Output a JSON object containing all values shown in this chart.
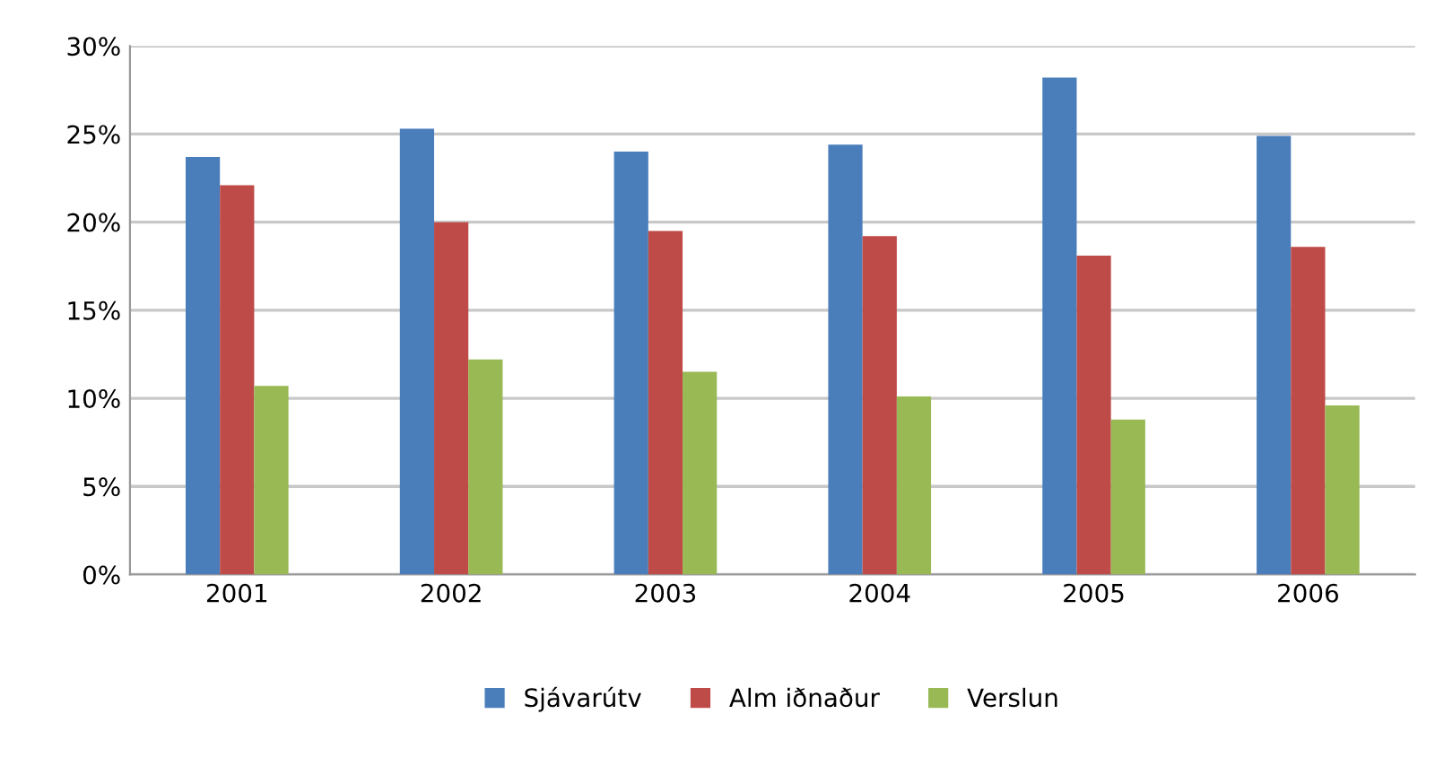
{
  "chart_data": {
    "type": "bar",
    "categories": [
      "2001",
      "2002",
      "2003",
      "2004",
      "2005",
      "2006"
    ],
    "series": [
      {
        "name": "Sjávarútv",
        "color": "#4a7ebb",
        "values": [
          23.7,
          25.3,
          24.0,
          24.4,
          28.2,
          24.9
        ]
      },
      {
        "name": "Alm iðnaður",
        "color": "#be4b48",
        "values": [
          22.1,
          20.0,
          19.5,
          19.2,
          18.1,
          18.6
        ]
      },
      {
        "name": "Verslun",
        "color": "#98b954",
        "values": [
          10.7,
          12.2,
          11.5,
          10.1,
          8.8,
          9.6
        ]
      }
    ],
    "ylim": [
      0,
      30
    ],
    "yticks": [
      {
        "value": 0,
        "label": "0%"
      },
      {
        "value": 5,
        "label": "5%"
      },
      {
        "value": 10,
        "label": "10%"
      },
      {
        "value": 15,
        "label": "15%"
      },
      {
        "value": 20,
        "label": "20%"
      },
      {
        "value": 25,
        "label": "25%"
      },
      {
        "value": 30,
        "label": "30%"
      }
    ],
    "grid": "y",
    "legend": "bottom"
  }
}
